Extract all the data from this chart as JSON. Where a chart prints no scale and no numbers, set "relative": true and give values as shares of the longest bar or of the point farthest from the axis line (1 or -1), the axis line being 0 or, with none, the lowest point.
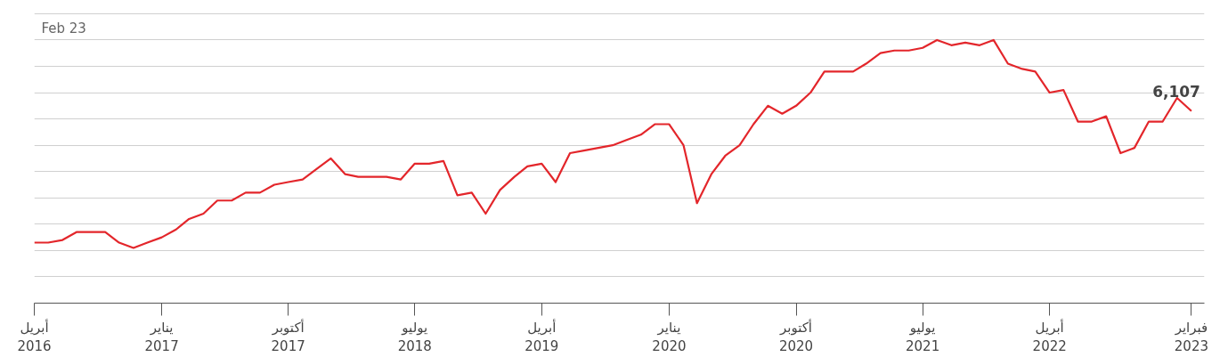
{
  "chart_data": {
    "type": "line",
    "relative": true,
    "grid": "y",
    "tick_labels": "x",
    "marker": "none",
    "line_style": "solid",
    "x": [
      "2016-04",
      "2016-05",
      "2016-06",
      "2016-07",
      "2016-08",
      "2016-09",
      "2016-10",
      "2016-11",
      "2016-12",
      "2017-01",
      "2017-02",
      "2017-03",
      "2017-04",
      "2017-05",
      "2017-06",
      "2017-07",
      "2017-08",
      "2017-09",
      "2017-10",
      "2017-11",
      "2017-12",
      "2018-01",
      "2018-02",
      "2018-03",
      "2018-04",
      "2018-05",
      "2018-06",
      "2018-07",
      "2018-08",
      "2018-09",
      "2018-10",
      "2018-11",
      "2018-12",
      "2019-01",
      "2019-02",
      "2019-03",
      "2019-04",
      "2019-05",
      "2019-06",
      "2019-07",
      "2019-08",
      "2019-09",
      "2019-10",
      "2019-11",
      "2019-12",
      "2020-01",
      "2020-02",
      "2020-03",
      "2020-04",
      "2020-05",
      "2020-06",
      "2020-07",
      "2020-08",
      "2020-09",
      "2020-10",
      "2020-11",
      "2020-12",
      "2021-01",
      "2021-02",
      "2021-03",
      "2021-04",
      "2021-05",
      "2021-06",
      "2021-07",
      "2021-08",
      "2021-09",
      "2021-10",
      "2021-11",
      "2021-12",
      "2022-01",
      "2022-02",
      "2022-03",
      "2022-04",
      "2022-05",
      "2022-06",
      "2022-07",
      "2022-08",
      "2022-09",
      "2022-10",
      "2022-11",
      "2022-12",
      "2023-01",
      "2023-02"
    ],
    "series": [
      {
        "color": "#e3262b",
        "values": [
          0.23,
          0.23,
          0.24,
          0.27,
          0.27,
          0.27,
          0.23,
          0.21,
          0.23,
          0.25,
          0.28,
          0.32,
          0.34,
          0.39,
          0.39,
          0.42,
          0.42,
          0.45,
          0.46,
          0.47,
          0.51,
          0.55,
          0.49,
          0.48,
          0.48,
          0.48,
          0.47,
          0.53,
          0.53,
          0.54,
          0.41,
          0.42,
          0.34,
          0.43,
          0.48,
          0.52,
          0.53,
          0.46,
          0.57,
          0.58,
          0.59,
          0.6,
          0.62,
          0.64,
          0.68,
          0.68,
          0.6,
          0.38,
          0.49,
          0.56,
          0.6,
          0.68,
          0.75,
          0.72,
          0.75,
          0.8,
          0.88,
          0.88,
          0.88,
          0.91,
          0.95,
          0.96,
          0.96,
          0.97,
          1.0,
          0.98,
          0.99,
          0.98,
          1.0,
          0.91,
          0.89,
          0.88,
          0.8,
          0.81,
          0.69,
          0.69,
          0.71,
          0.57,
          0.59,
          0.69,
          0.69,
          0.78,
          0.73
        ]
      }
    ],
    "xlim": [
      "2016-04",
      "2023-03"
    ],
    "xticks": [
      {
        "value": "2016-04",
        "label": "أبريل\n2016"
      },
      {
        "value": "2017-01",
        "label": "يناير\n2017"
      },
      {
        "value": "2017-10",
        "label": "أكتوبر\n2017"
      },
      {
        "value": "2018-07",
        "label": "يوليو\n2018"
      },
      {
        "value": "2019-04",
        "label": "أبريل\n2019"
      },
      {
        "value": "2020-01",
        "label": "يناير\n2020"
      },
      {
        "value": "2020-10",
        "label": "أكتوبر\n2020"
      },
      {
        "value": "2021-07",
        "label": "يوليو\n2021"
      },
      {
        "value": "2022-04",
        "label": "أبريل\n2022"
      },
      {
        "value": "2023-02",
        "label": "فبراير\n2023"
      }
    ],
    "annotations": [
      "Feb 23",
      {
        "text": "6,107",
        "x": "2023-02",
        "y": 0.73
      }
    ]
  }
}
